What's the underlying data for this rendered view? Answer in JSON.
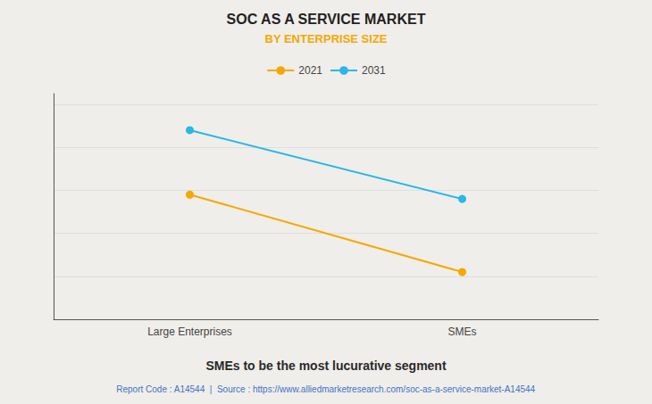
{
  "chart_data": {
    "type": "line",
    "title": "SOC AS A SERVICE MARKET",
    "subtitle": "BY ENTERPRISE SIZE",
    "categories": [
      "Large Enterprises",
      "SMEs"
    ],
    "series": [
      {
        "name": "2021",
        "color": "#F5A800",
        "values": [
          0.58,
          0.22
        ],
        "marker": "circle"
      },
      {
        "name": "2031",
        "color": "#29B6E8",
        "values": [
          0.88,
          0.56
        ],
        "marker": "circle"
      }
    ],
    "ylim": [
      0.0,
      1.05
    ],
    "yticks": [
      0.2,
      0.4,
      0.6,
      0.8,
      1.0
    ],
    "grid": true,
    "legend": "top",
    "tick_labels": "x",
    "annotations": [
      "SMEs to be the most lucurative segment",
      "Report Code : A14544  |  Source : https://www.alliedmarketresearch.com/soc-as-a-service-market-A14544"
    ]
  }
}
